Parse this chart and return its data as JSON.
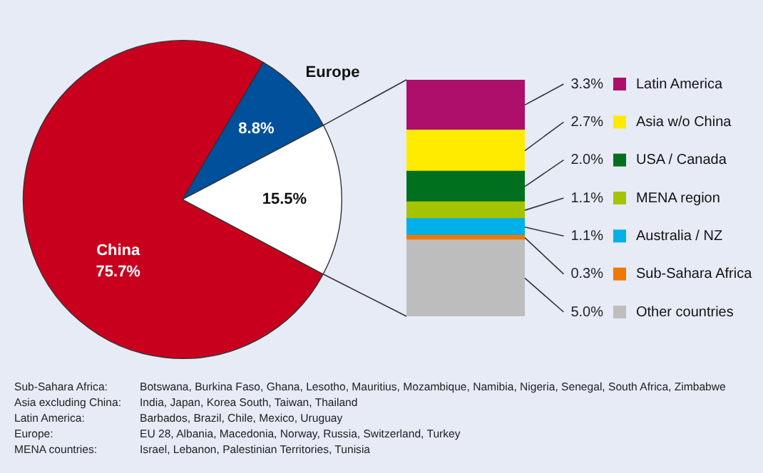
{
  "chart_data": [
    {
      "type": "pie",
      "categories": [
        "China",
        "Europe",
        null
      ],
      "values": [
        75.7,
        8.8,
        15.5
      ],
      "colors": [
        "#c8001e",
        "#00509b",
        "#ffffff"
      ],
      "value_labels": [
        "75.7%",
        "8.8%",
        "15.5%"
      ],
      "annotations": [
        "Sub-Sahara Africa: Botswana, Burkina Faso, Ghana, Lesotho, Mauritius, Mozambique, Namibia, Nigeria, Senegal, South Africa, Zimbabwe",
        "Asia excluding China: India, Japan, Korea South, Taiwan, Thailand",
        "Latin America: Barbados, Brazil, Chile, Mexico, Uruguay",
        "Europe: EU 28, Albania, Macedonia, Norway, Russia, Switzerland, Turkey",
        "MENA countries: Israel, Lebanon, Palestinian Territories, Tunisia"
      ]
    },
    {
      "type": "bar",
      "stacked": true,
      "categories": [
        null
      ],
      "legend": "right",
      "series": [
        {
          "name": "Other countries",
          "color": "#bdbdbd",
          "values": [
            5.0
          ],
          "value_labels": [
            "5.0%"
          ]
        },
        {
          "name": "Sub-Sahara Africa",
          "color": "#f07800",
          "values": [
            0.3
          ],
          "value_labels": [
            "0.3%"
          ]
        },
        {
          "name": "Australia / NZ",
          "color": "#00b0e8",
          "values": [
            1.1
          ],
          "value_labels": [
            "1.1%"
          ]
        },
        {
          "name": "MENA region",
          "color": "#a5c300",
          "values": [
            1.1
          ],
          "value_labels": [
            "1.1%"
          ]
        },
        {
          "name": "USA / Canada",
          "color": "#00701e",
          "values": [
            2.0
          ],
          "value_labels": [
            "2.0%"
          ]
        },
        {
          "name": "Asia w/o China",
          "color": "#ffeb00",
          "values": [
            2.7
          ],
          "value_labels": [
            "2.7%"
          ]
        },
        {
          "name": "Latin America",
          "color": "#ad0f6a",
          "values": [
            3.3
          ],
          "value_labels": [
            "3.3%"
          ]
        }
      ]
    }
  ]
}
